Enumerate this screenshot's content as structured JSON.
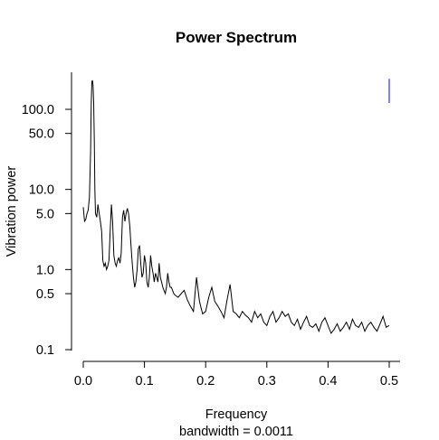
{
  "chart_data": {
    "type": "line",
    "title": "Power Spectrum",
    "xlabel": "Frequency",
    "sublabel": "bandwidth = 0.0011",
    "ylabel": "Vibration power",
    "y_scale": "log",
    "xlim": [
      0,
      0.5
    ],
    "ylim": [
      0.1,
      300
    ],
    "x_ticks": [
      0,
      0.1,
      0.2,
      0.3,
      0.4,
      0.5
    ],
    "x_tick_labels": [
      "0.0",
      "0.1",
      "0.2",
      "0.3",
      "0.4",
      "0.5"
    ],
    "y_ticks": [
      0.1,
      0.5,
      1,
      5,
      10,
      50,
      100
    ],
    "y_tick_labels": [
      "0.1",
      "0.5",
      "1.0",
      "5.0",
      "10.0",
      "50.0",
      "100.0"
    ],
    "line_color": "#000000",
    "marker_color": "#0000ff",
    "series": [
      {
        "x": [
          0.0,
          0.002,
          0.004,
          0.006,
          0.008,
          0.01,
          0.012,
          0.013,
          0.014,
          0.015,
          0.016,
          0.017,
          0.018,
          0.019,
          0.02,
          0.022,
          0.024,
          0.026,
          0.028,
          0.03,
          0.032,
          0.034,
          0.036,
          0.038,
          0.04,
          0.042,
          0.044,
          0.046,
          0.048,
          0.05,
          0.052,
          0.054,
          0.056,
          0.058,
          0.06,
          0.062,
          0.064,
          0.066,
          0.068,
          0.07,
          0.072,
          0.074,
          0.076,
          0.078,
          0.08,
          0.082,
          0.084,
          0.086,
          0.088,
          0.09,
          0.092,
          0.094,
          0.096,
          0.098,
          0.1,
          0.102,
          0.104,
          0.106,
          0.108,
          0.11,
          0.112,
          0.114,
          0.116,
          0.118,
          0.12,
          0.122,
          0.124,
          0.126,
          0.128,
          0.13,
          0.132,
          0.134,
          0.136,
          0.138,
          0.14,
          0.142,
          0.144,
          0.146,
          0.148,
          0.15,
          0.155,
          0.16,
          0.165,
          0.17,
          0.175,
          0.18,
          0.185,
          0.19,
          0.195,
          0.2,
          0.205,
          0.21,
          0.215,
          0.22,
          0.225,
          0.23,
          0.235,
          0.24,
          0.245,
          0.25,
          0.255,
          0.26,
          0.265,
          0.27,
          0.275,
          0.28,
          0.285,
          0.29,
          0.295,
          0.3,
          0.305,
          0.31,
          0.315,
          0.32,
          0.325,
          0.33,
          0.335,
          0.34,
          0.345,
          0.35,
          0.355,
          0.36,
          0.365,
          0.37,
          0.375,
          0.38,
          0.385,
          0.39,
          0.395,
          0.4,
          0.405,
          0.41,
          0.415,
          0.42,
          0.425,
          0.43,
          0.435,
          0.44,
          0.445,
          0.45,
          0.455,
          0.46,
          0.465,
          0.47,
          0.475,
          0.48,
          0.485,
          0.49,
          0.495,
          0.5
        ],
        "y": [
          6.0,
          4.0,
          4.2,
          5.0,
          5.5,
          8.0,
          30.0,
          120.0,
          220.0,
          230.0,
          200.0,
          120.0,
          40.0,
          10.0,
          5.0,
          4.5,
          6.5,
          5.0,
          4.0,
          3.0,
          1.3,
          1.1,
          1.2,
          1.0,
          1.1,
          1.3,
          3.0,
          6.5,
          4.0,
          1.5,
          1.2,
          1.1,
          1.3,
          1.4,
          1.2,
          1.6,
          4.5,
          5.5,
          4.0,
          5.0,
          5.8,
          5.0,
          3.5,
          2.0,
          1.2,
          0.8,
          0.6,
          0.7,
          1.0,
          1.8,
          2.0,
          1.2,
          0.8,
          0.9,
          1.5,
          1.2,
          0.7,
          0.6,
          0.8,
          1.5,
          1.1,
          0.9,
          0.7,
          0.9,
          0.8,
          0.7,
          1.2,
          0.8,
          0.7,
          0.6,
          0.55,
          0.5,
          0.6,
          0.9,
          0.7,
          0.6,
          0.6,
          0.55,
          0.5,
          0.48,
          0.45,
          0.5,
          0.55,
          0.42,
          0.35,
          0.3,
          0.8,
          0.4,
          0.28,
          0.3,
          0.45,
          0.6,
          0.4,
          0.35,
          0.3,
          0.25,
          0.42,
          0.65,
          0.3,
          0.28,
          0.25,
          0.3,
          0.27,
          0.25,
          0.22,
          0.3,
          0.25,
          0.28,
          0.22,
          0.2,
          0.26,
          0.3,
          0.22,
          0.25,
          0.3,
          0.26,
          0.28,
          0.22,
          0.2,
          0.24,
          0.18,
          0.22,
          0.26,
          0.2,
          0.19,
          0.21,
          0.17,
          0.22,
          0.25,
          0.2,
          0.16,
          0.18,
          0.21,
          0.17,
          0.19,
          0.22,
          0.18,
          0.24,
          0.2,
          0.19,
          0.22,
          0.17,
          0.2,
          0.22,
          0.19,
          0.17,
          0.21,
          0.26,
          0.19,
          0.2
        ]
      }
    ],
    "marker": {
      "x": 0.5,
      "y_range": [
        120,
        240
      ]
    }
  }
}
